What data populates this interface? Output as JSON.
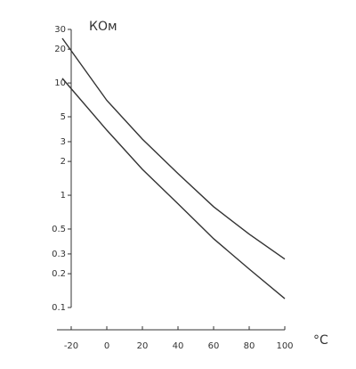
{
  "chart_data": {
    "type": "line",
    "y_label": "КОм",
    "x_label": "°C",
    "log_y": true,
    "x": [
      -25,
      0,
      20,
      40,
      60,
      80,
      100
    ],
    "series": [
      {
        "color": "#333333",
        "values": [
          25,
          7,
          3.16,
          1.56,
          0.79,
          0.45,
          0.27
        ]
      },
      {
        "color": "#333333",
        "values": [
          11,
          3.8,
          1.7,
          0.84,
          0.41,
          0.22,
          0.12
        ]
      }
    ],
    "xlim": [
      -26,
      100
    ],
    "xticks": [
      -20,
      0,
      20,
      40,
      60,
      80,
      100
    ],
    "ylim": [
      0.1,
      30
    ],
    "yticks": [
      30,
      20,
      10,
      5,
      3,
      2,
      1,
      0.5,
      0.3,
      0.2,
      0.1
    ]
  }
}
